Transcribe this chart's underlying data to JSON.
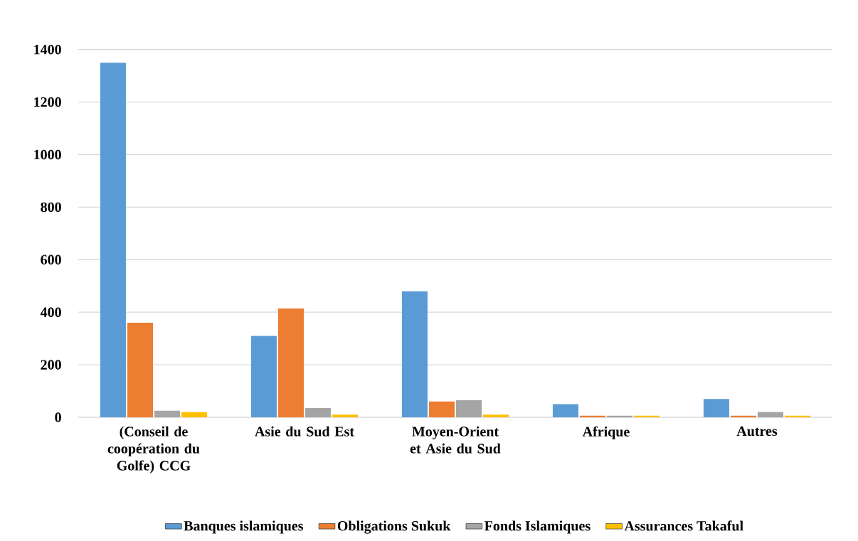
{
  "chart_data": {
    "type": "bar",
    "categories": [
      "(Conseil de coopération du Golfe) CCG",
      "Asie du Sud Est",
      "Moyen-Orient et Asie du Sud",
      "Afrique",
      "Autres"
    ],
    "series": [
      {
        "name": "Banques islamiques",
        "color": "#5b9bd5",
        "values": [
          1350,
          310,
          480,
          50,
          70
        ]
      },
      {
        "name": "Obligations Sukuk",
        "color": "#ed7d31",
        "values": [
          360,
          415,
          60,
          6,
          6
        ]
      },
      {
        "name": "Fonds Islamiques",
        "color": "#a5a5a5",
        "values": [
          25,
          35,
          65,
          6,
          20
        ]
      },
      {
        "name": "Assurances Takaful",
        "color": "#ffc000",
        "values": [
          20,
          10,
          10,
          6,
          6
        ]
      }
    ],
    "ylim": [
      0,
      1400
    ],
    "yticks": [
      0,
      200,
      400,
      600,
      800,
      1000,
      1200,
      1400
    ],
    "grid": "y",
    "legend": "bottom"
  }
}
